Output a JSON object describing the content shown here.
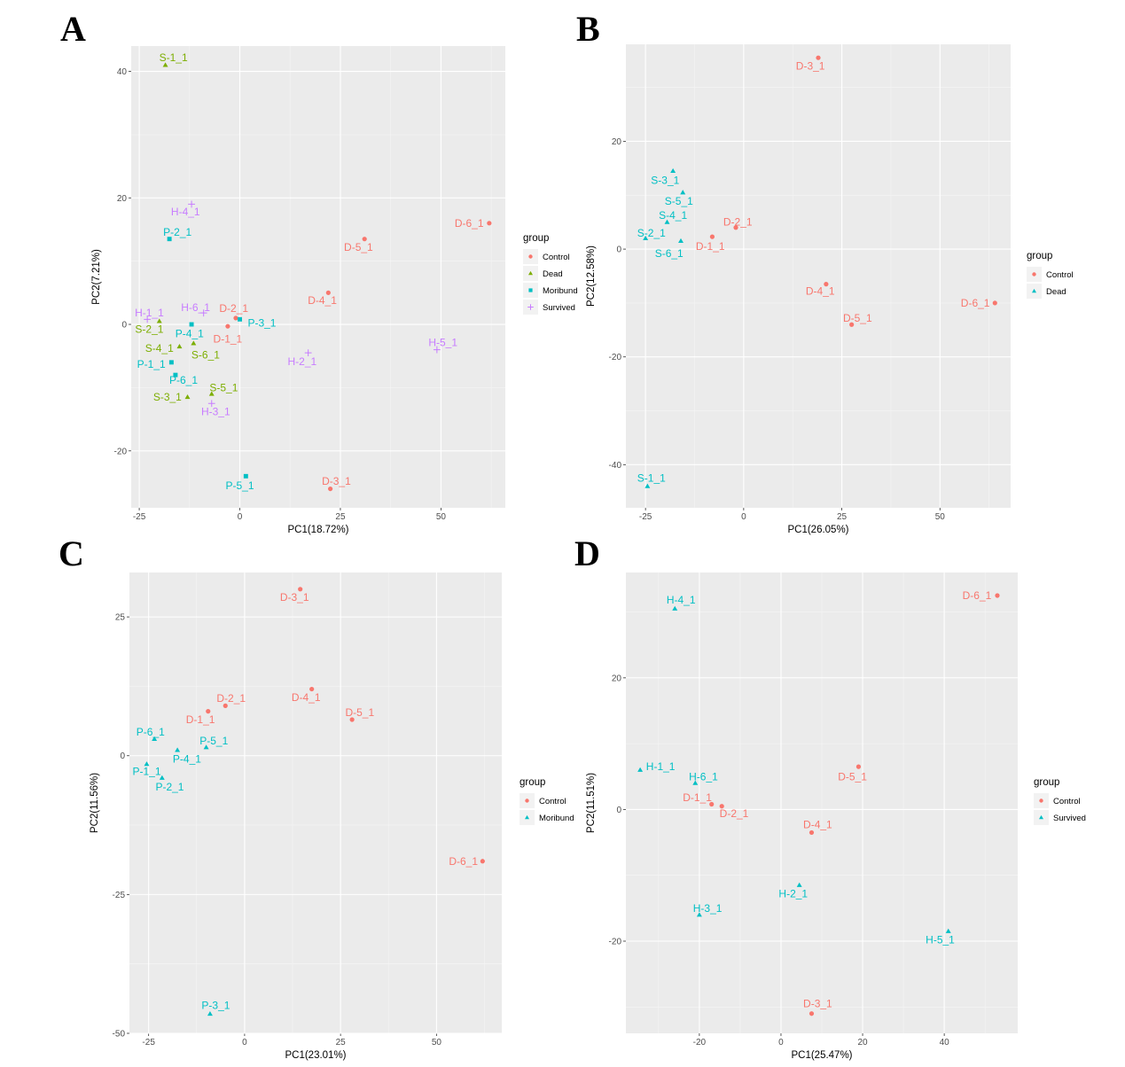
{
  "colors": {
    "Control": "#F8766D",
    "Dead": "#7CAE00",
    "Moribund": "#00BFC4",
    "Survived": "#C77CFF",
    "Dead_B": "#00BFC4",
    "Survived_D": "#00BFC4",
    "panel_bg": "#EBEBEB",
    "grid": "#FFFFFF"
  },
  "chart_data": [
    {
      "panel": "A",
      "type": "scatter",
      "xlabel": "PC1(18.72%)",
      "ylabel": "PC2(7.21%)",
      "xlim": [
        -27,
        66
      ],
      "ylim": [
        -29,
        44
      ],
      "xticks": [
        -25,
        0,
        25,
        50
      ],
      "yticks": [
        -20,
        0,
        20,
        40
      ],
      "legend": {
        "title": "group",
        "position": "right",
        "entries": [
          {
            "label": "Control",
            "shape": "circle",
            "color": "#F8766D"
          },
          {
            "label": "Dead",
            "shape": "triangle",
            "color": "#7CAE00"
          },
          {
            "label": "Moribund",
            "shape": "square",
            "color": "#00BFC4"
          },
          {
            "label": "Survived",
            "shape": "plus",
            "color": "#C77CFF"
          }
        ]
      },
      "points": [
        {
          "label": "D-6_1",
          "x": 62,
          "y": 16,
          "group": "Control",
          "lx": 57,
          "ly": 16
        },
        {
          "label": "D-5_1",
          "x": 31,
          "y": 13.5,
          "group": "Control",
          "lx": 29.5,
          "ly": 12.2
        },
        {
          "label": "D-4_1",
          "x": 22,
          "y": 5,
          "group": "Control",
          "lx": 20.5,
          "ly": 3.8
        },
        {
          "label": "D-2_1",
          "x": -1,
          "y": 1,
          "group": "Control",
          "lx": -1.5,
          "ly": 2.5
        },
        {
          "label": "D-1_1",
          "x": -3,
          "y": -0.3,
          "group": "Control",
          "lx": -3,
          "ly": -2.3
        },
        {
          "label": "D-3_1",
          "x": 22.5,
          "y": -26,
          "group": "Control",
          "lx": 24,
          "ly": -24.8
        },
        {
          "label": "S-1_1",
          "x": -18.5,
          "y": 41,
          "group": "Dead",
          "lx": -16.5,
          "ly": 42.2
        },
        {
          "label": "S-2_1",
          "x": -20,
          "y": 0.5,
          "group": "Dead",
          "lx": -22.5,
          "ly": -0.8
        },
        {
          "label": "S-4_1",
          "x": -15,
          "y": -3.5,
          "group": "Dead",
          "lx": -20,
          "ly": -3.8
        },
        {
          "label": "S-6_1",
          "x": -11.5,
          "y": -3,
          "group": "Dead",
          "lx": -8.5,
          "ly": -4.8
        },
        {
          "label": "S-5_1",
          "x": -7,
          "y": -11,
          "group": "Dead",
          "lx": -4,
          "ly": -10
        },
        {
          "label": "S-3_1",
          "x": -13,
          "y": -11.5,
          "group": "Dead",
          "lx": -18,
          "ly": -11.5
        },
        {
          "label": "P-2_1",
          "x": -17.5,
          "y": 13.5,
          "group": "Moribund",
          "lx": -15.5,
          "ly": 14.6
        },
        {
          "label": "P-3_1",
          "x": 0,
          "y": 0.8,
          "group": "Moribund",
          "lx": 5.5,
          "ly": 0.2
        },
        {
          "label": "P-4_1",
          "x": -12,
          "y": 0,
          "group": "Moribund",
          "lx": -12.5,
          "ly": -1.5
        },
        {
          "label": "P-1_1",
          "x": -17,
          "y": -6,
          "group": "Moribund",
          "lx": -22,
          "ly": -6.3
        },
        {
          "label": "P-6_1",
          "x": -16,
          "y": -8,
          "group": "Moribund",
          "lx": -14,
          "ly": -8.8
        },
        {
          "label": "P-5_1",
          "x": 1.5,
          "y": -24,
          "group": "Moribund",
          "lx": 0,
          "ly": -25.5
        },
        {
          "label": "H-4_1",
          "x": -12,
          "y": 19,
          "group": "Survived",
          "lx": -13.5,
          "ly": 17.8
        },
        {
          "label": "H-6_1",
          "x": -9,
          "y": 1.8,
          "group": "Survived",
          "lx": -11,
          "ly": 2.7
        },
        {
          "label": "H-1_1",
          "x": -23,
          "y": 0.8,
          "group": "Survived",
          "lx": -22.5,
          "ly": 1.8
        },
        {
          "label": "H-5_1",
          "x": 49,
          "y": -4,
          "group": "Survived",
          "lx": 50.5,
          "ly": -2.9
        },
        {
          "label": "H-2_1",
          "x": 17,
          "y": -4.5,
          "group": "Survived",
          "lx": 15.5,
          "ly": -5.9
        },
        {
          "label": "H-3_1",
          "x": -7,
          "y": -12.5,
          "group": "Survived",
          "lx": -6,
          "ly": -13.8
        }
      ]
    },
    {
      "panel": "B",
      "type": "scatter",
      "xlabel": "PC1(26.05%)",
      "ylabel": "PC2(12.58%)",
      "xlim": [
        -30,
        68
      ],
      "ylim": [
        -48,
        38
      ],
      "xticks": [
        -25,
        0,
        25,
        50
      ],
      "yticks": [
        -40,
        -20,
        0,
        20
      ],
      "legend": {
        "title": "group",
        "position": "right",
        "entries": [
          {
            "label": "Control",
            "shape": "circle",
            "color": "#F8766D"
          },
          {
            "label": "Dead",
            "shape": "triangle",
            "color": "#00BFC4"
          }
        ]
      },
      "points": [
        {
          "label": "D-3_1",
          "x": 19,
          "y": 35.5,
          "group": "Control",
          "lx": 17,
          "ly": 34
        },
        {
          "label": "D-2_1",
          "x": -2,
          "y": 4,
          "group": "Control",
          "lx": -1.5,
          "ly": 5
        },
        {
          "label": "D-1_1",
          "x": -8,
          "y": 2.3,
          "group": "Control",
          "lx": -8.5,
          "ly": 0.5
        },
        {
          "label": "D-4_1",
          "x": 21,
          "y": -6.5,
          "group": "Control",
          "lx": 19.5,
          "ly": -7.8
        },
        {
          "label": "D-5_1",
          "x": 27.5,
          "y": -14,
          "group": "Control",
          "lx": 29,
          "ly": -12.8
        },
        {
          "label": "D-6_1",
          "x": 64,
          "y": -10,
          "group": "Control",
          "lx": 59,
          "ly": -10
        },
        {
          "label": "S-3_1",
          "x": -18,
          "y": 14.5,
          "group": "Dead",
          "lx": -20,
          "ly": 12.8
        },
        {
          "label": "S-5_1",
          "x": -15.5,
          "y": 10.5,
          "group": "Dead",
          "lx": -16.5,
          "ly": 8.9
        },
        {
          "label": "S-4_1",
          "x": -19.5,
          "y": 5,
          "group": "Dead",
          "lx": -18,
          "ly": 6.3
        },
        {
          "label": "S-2_1",
          "x": -25,
          "y": 2,
          "group": "Dead",
          "lx": -23.5,
          "ly": 3
        },
        {
          "label": "S-6_1",
          "x": -16,
          "y": 1.5,
          "group": "Dead",
          "lx": -19,
          "ly": -0.8
        },
        {
          "label": "S-1_1",
          "x": -24.5,
          "y": -44,
          "group": "Dead",
          "lx": -23.5,
          "ly": -42.5
        }
      ]
    },
    {
      "panel": "C",
      "type": "scatter",
      "xlabel": "PC1(23.01%)",
      "ylabel": "PC2(11.56%)",
      "xlim": [
        -30,
        67
      ],
      "ylim": [
        -50,
        33
      ],
      "xticks": [
        -25,
        0,
        25,
        50
      ],
      "yticks": [
        -50,
        -25,
        0,
        25
      ],
      "legend": {
        "title": "group",
        "position": "right",
        "entries": [
          {
            "label": "Control",
            "shape": "circle",
            "color": "#F8766D"
          },
          {
            "label": "Moribund",
            "shape": "triangle",
            "color": "#00BFC4"
          }
        ]
      },
      "points": [
        {
          "label": "D-3_1",
          "x": 14.5,
          "y": 30,
          "group": "Control",
          "lx": 13,
          "ly": 28.5
        },
        {
          "label": "D-4_1",
          "x": 17.5,
          "y": 12,
          "group": "Control",
          "lx": 16,
          "ly": 10.5
        },
        {
          "label": "D-2_1",
          "x": -5,
          "y": 9,
          "group": "Control",
          "lx": -3.5,
          "ly": 10.3
        },
        {
          "label": "D-1_1",
          "x": -9.5,
          "y": 8,
          "group": "Control",
          "lx": -11.5,
          "ly": 6.5
        },
        {
          "label": "D-5_1",
          "x": 28,
          "y": 6.5,
          "group": "Control",
          "lx": 30,
          "ly": 7.8
        },
        {
          "label": "D-6_1",
          "x": 62,
          "y": -19,
          "group": "Control",
          "lx": 57,
          "ly": -19
        },
        {
          "label": "P-6_1",
          "x": -23.5,
          "y": 3,
          "group": "Moribund",
          "lx": -24.5,
          "ly": 4.3
        },
        {
          "label": "P-5_1",
          "x": -10,
          "y": 1.5,
          "group": "Moribund",
          "lx": -8,
          "ly": 2.7
        },
        {
          "label": "P-4_1",
          "x": -17.5,
          "y": 1,
          "group": "Moribund",
          "lx": -15,
          "ly": -0.6
        },
        {
          "label": "P-1_1",
          "x": -25.5,
          "y": -1.5,
          "group": "Moribund",
          "lx": -25.5,
          "ly": -2.8
        },
        {
          "label": "P-2_1",
          "x": -21.5,
          "y": -4,
          "group": "Moribund",
          "lx": -19.5,
          "ly": -5.6
        },
        {
          "label": "P-3_1",
          "x": -9,
          "y": -46.5,
          "group": "Moribund",
          "lx": -7.5,
          "ly": -45
        }
      ]
    },
    {
      "panel": "D",
      "type": "scatter",
      "xlabel": "PC1(25.47%)",
      "ylabel": "PC2(11.51%)",
      "xlim": [
        -38,
        58
      ],
      "ylim": [
        -34,
        36
      ],
      "xticks": [
        -20,
        0,
        20,
        40
      ],
      "yticks": [
        -20,
        0,
        20
      ],
      "legend": {
        "title": "group",
        "position": "right",
        "entries": [
          {
            "label": "Control",
            "shape": "circle",
            "color": "#F8766D"
          },
          {
            "label": "Survived",
            "shape": "triangle",
            "color": "#00BFC4"
          }
        ]
      },
      "points": [
        {
          "label": "D-6_1",
          "x": 53,
          "y": 32.5,
          "group": "Control",
          "lx": 48,
          "ly": 32.5
        },
        {
          "label": "D-5_1",
          "x": 19,
          "y": 6.5,
          "group": "Control",
          "lx": 17.5,
          "ly": 5
        },
        {
          "label": "D-1_1",
          "x": -17,
          "y": 0.8,
          "group": "Control",
          "lx": -20.5,
          "ly": 1.8
        },
        {
          "label": "D-2_1",
          "x": -14.5,
          "y": 0.5,
          "group": "Control",
          "lx": -11.5,
          "ly": -0.6
        },
        {
          "label": "D-4_1",
          "x": 7.5,
          "y": -3.5,
          "group": "Control",
          "lx": 9,
          "ly": -2.3
        },
        {
          "label": "D-3_1",
          "x": 7.5,
          "y": -31,
          "group": "Control",
          "lx": 9,
          "ly": -29.5
        },
        {
          "label": "H-4_1",
          "x": -26,
          "y": 30.5,
          "group": "Survived",
          "lx": -24.5,
          "ly": 31.8
        },
        {
          "label": "H-1_1",
          "x": -34.5,
          "y": 6,
          "group": "Survived",
          "lx": -29.5,
          "ly": 6.5
        },
        {
          "label": "H-6_1",
          "x": -21,
          "y": 4,
          "group": "Survived",
          "lx": -19,
          "ly": 5
        },
        {
          "label": "H-2_1",
          "x": 4.5,
          "y": -11.5,
          "group": "Survived",
          "lx": 3,
          "ly": -12.8
        },
        {
          "label": "H-3_1",
          "x": -20,
          "y": -16,
          "group": "Survived",
          "lx": -18,
          "ly": -15
        },
        {
          "label": "H-5_1",
          "x": 41,
          "y": -18.5,
          "group": "Survived",
          "lx": 39,
          "ly": -19.8
        }
      ]
    }
  ]
}
